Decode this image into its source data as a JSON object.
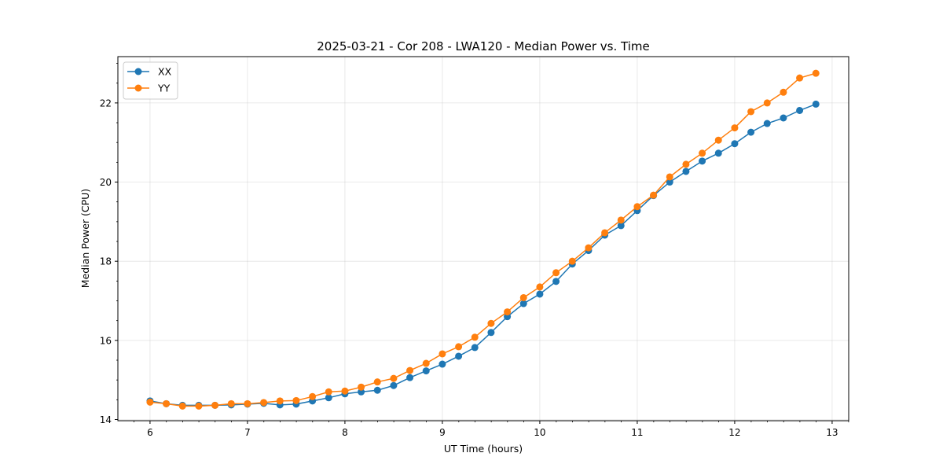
{
  "chart_data": {
    "type": "line",
    "title": "2025-03-21 - Cor 208 - LWA120 - Median Power vs. Time",
    "xlabel": "UT Time (hours)",
    "ylabel": "Median Power (CPU)",
    "xlim": [
      5.67,
      13.17
    ],
    "ylim": [
      13.97,
      23.17
    ],
    "x_ticks": [
      6,
      7,
      8,
      9,
      10,
      11,
      12,
      13
    ],
    "x_tick_labels": [
      "6",
      "7",
      "8",
      "9",
      "10",
      "11",
      "12",
      "13"
    ],
    "y_ticks": [
      14,
      16,
      18,
      20,
      22
    ],
    "y_tick_labels": [
      "14",
      "16",
      "18",
      "20",
      "22"
    ],
    "x_minor_step": 0.1667,
    "grid": true,
    "legend_position": "top-left",
    "x": [
      6.0,
      6.1667,
      6.3333,
      6.5,
      6.6667,
      6.8333,
      7.0,
      7.1667,
      7.3333,
      7.5,
      7.6667,
      7.8333,
      8.0,
      8.1667,
      8.3333,
      8.5,
      8.6667,
      8.8333,
      9.0,
      9.1667,
      9.3333,
      9.5,
      9.6667,
      9.8333,
      10.0,
      10.1667,
      10.3333,
      10.5,
      10.6667,
      10.8333,
      11.0,
      11.1667,
      11.3333,
      11.5,
      11.6667,
      11.8333,
      12.0,
      12.1667,
      12.3333,
      12.5,
      12.6667,
      12.8333
    ],
    "series": [
      {
        "name": "XX",
        "color": "#1f77b4",
        "values": [
          14.47,
          14.4,
          14.36,
          14.36,
          14.36,
          14.37,
          14.39,
          14.41,
          14.37,
          14.39,
          14.47,
          14.55,
          14.65,
          14.7,
          14.74,
          14.86,
          15.06,
          15.23,
          15.4,
          15.6,
          15.82,
          16.2,
          16.6,
          16.93,
          17.17,
          17.49,
          17.93,
          18.27,
          18.66,
          18.9,
          19.28,
          19.66,
          20.0,
          20.27,
          20.53,
          20.73,
          20.97,
          21.26,
          21.48,
          21.62,
          21.81,
          21.97
        ]
      },
      {
        "name": "YY",
        "color": "#ff7f0e",
        "values": [
          14.44,
          14.4,
          14.34,
          14.34,
          14.36,
          14.4,
          14.4,
          14.43,
          14.47,
          14.48,
          14.58,
          14.7,
          14.72,
          14.82,
          14.95,
          15.04,
          15.24,
          15.42,
          15.66,
          15.84,
          16.08,
          16.43,
          16.72,
          17.08,
          17.35,
          17.71,
          18.0,
          18.34,
          18.72,
          19.04,
          19.38,
          19.67,
          20.13,
          20.45,
          20.73,
          21.06,
          21.37,
          21.78,
          22.0,
          22.27,
          22.63,
          22.75
        ]
      }
    ]
  }
}
